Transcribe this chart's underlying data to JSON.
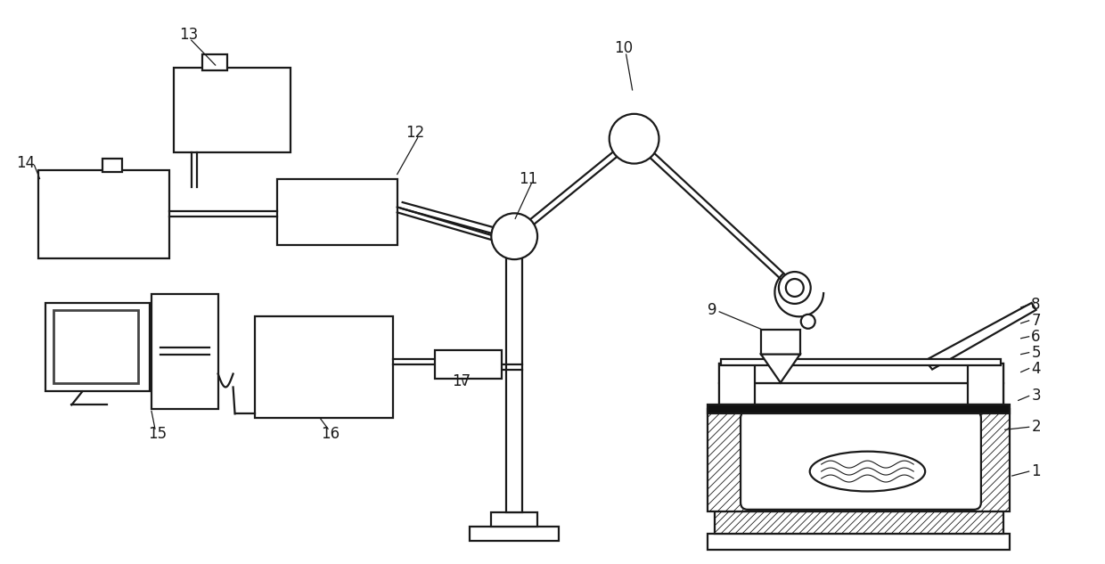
{
  "bg_color": "#ffffff",
  "lc": "#1a1a1a",
  "lw": 1.6,
  "fig_width": 12.4,
  "fig_height": 6.33
}
